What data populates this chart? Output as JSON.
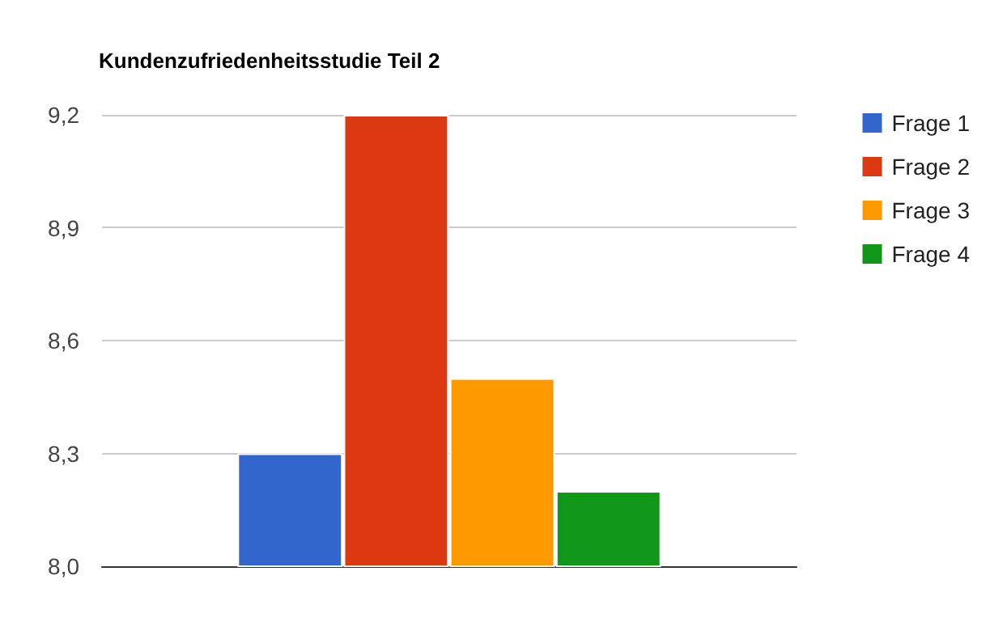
{
  "chart_data": {
    "type": "bar",
    "title": "Kundenzufriedenheitsstudie Teil 2",
    "categories": [
      null
    ],
    "series": [
      {
        "name": "Frage 1",
        "color": "#3366cc",
        "values": [
          8.3
        ]
      },
      {
        "name": "Frage 2",
        "color": "#dc3912",
        "values": [
          9.2
        ]
      },
      {
        "name": "Frage 3",
        "color": "#ff9900",
        "values": [
          8.5
        ]
      },
      {
        "name": "Frage 4",
        "color": "#109618",
        "values": [
          8.2
        ]
      }
    ],
    "ylim": [
      8.0,
      9.2
    ],
    "yticks": [
      {
        "value": 8.0,
        "label": "8,0"
      },
      {
        "value": 8.3,
        "label": "8,3"
      },
      {
        "value": 8.6,
        "label": "8,6"
      },
      {
        "value": 8.9,
        "label": "8,9"
      },
      {
        "value": 9.2,
        "label": "9,2"
      }
    ],
    "grid": "y",
    "legend": "right"
  }
}
